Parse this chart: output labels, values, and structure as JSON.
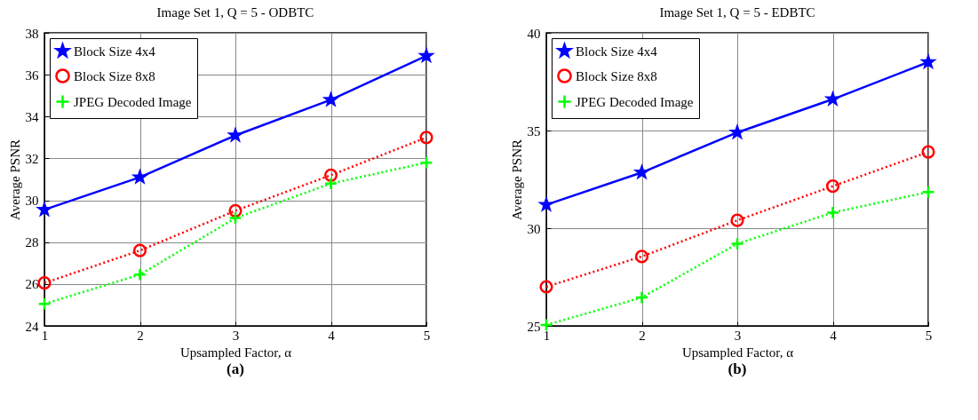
{
  "chart_data": [
    {
      "type": "line",
      "title": "Image Set 1, Q = 5 - ODBTC",
      "xlabel": "Upsampled Factor, α",
      "ylabel": "Average PSNR",
      "x": [
        1,
        2,
        3,
        4,
        5
      ],
      "xlim": [
        1,
        5
      ],
      "xticks": [
        1,
        2,
        3,
        4,
        5
      ],
      "ylim": [
        24,
        38
      ],
      "yticks": [
        24,
        26,
        28,
        30,
        32,
        34,
        36,
        38
      ],
      "grid": true,
      "legend": "top left",
      "annotations": [
        "(a)"
      ],
      "series": [
        {
          "name": "Block Size 4x4",
          "color": "#0000ff",
          "marker": "star",
          "line_style": "solid",
          "values": [
            29.55,
            31.1,
            33.1,
            34.8,
            36.9
          ]
        },
        {
          "name": "Block Size 8x8",
          "color": "#ff0000",
          "marker": "circle",
          "line_style": "dotted",
          "values": [
            26.05,
            27.6,
            29.5,
            31.2,
            33.0
          ]
        },
        {
          "name": "JPEG Decoded Image",
          "color": "#00ff00",
          "marker": "cross",
          "line_style": "dotted",
          "values": [
            25.05,
            26.45,
            29.15,
            30.8,
            31.8
          ]
        }
      ]
    },
    {
      "type": "line",
      "title": "Image Set 1, Q = 5 - EDBTC",
      "xlabel": "Upsampled Factor, α",
      "ylabel": "Average PSNR",
      "x": [
        1,
        2,
        3,
        4,
        5
      ],
      "xlim": [
        1,
        5
      ],
      "xticks": [
        1,
        2,
        3,
        4,
        5
      ],
      "ylim": [
        25,
        40
      ],
      "yticks": [
        25,
        30,
        35,
        40
      ],
      "grid": true,
      "legend": "top left",
      "annotations": [
        "(b)"
      ],
      "series": [
        {
          "name": "Block Size 4x4",
          "color": "#0000ff",
          "marker": "star",
          "line_style": "solid",
          "values": [
            31.2,
            32.85,
            34.9,
            36.6,
            38.5
          ]
        },
        {
          "name": "Block Size 8x8",
          "color": "#ff0000",
          "marker": "circle",
          "line_style": "dotted",
          "values": [
            27.0,
            28.55,
            30.4,
            32.15,
            33.9
          ]
        },
        {
          "name": "JPEG Decoded Image",
          "color": "#00ff00",
          "marker": "cross",
          "line_style": "dotted",
          "values": [
            25.05,
            26.45,
            29.2,
            30.8,
            31.85
          ]
        }
      ]
    }
  ]
}
